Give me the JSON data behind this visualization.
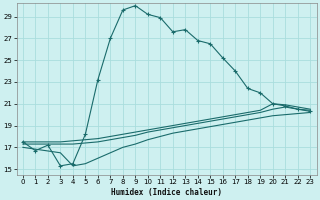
{
  "xlabel": "Humidex (Indice chaleur)",
  "bg_color": "#cef0f0",
  "grid_color": "#aadddd",
  "line_color": "#1a6b6b",
  "xlim": [
    -0.5,
    23.5
  ],
  "ylim": [
    14.5,
    30.2
  ],
  "xticks": [
    0,
    1,
    2,
    3,
    4,
    5,
    6,
    7,
    8,
    9,
    10,
    11,
    12,
    13,
    14,
    15,
    16,
    17,
    18,
    19,
    20,
    21,
    22,
    23
  ],
  "yticks": [
    15,
    17,
    19,
    21,
    23,
    25,
    27,
    29
  ],
  "main_x": [
    0,
    1,
    2,
    3,
    4,
    5,
    6,
    7,
    8,
    9,
    10,
    11,
    12,
    13,
    14,
    15,
    16,
    17,
    18,
    19,
    20,
    21,
    22,
    23
  ],
  "main_y": [
    17.5,
    16.7,
    17.2,
    15.3,
    15.5,
    18.2,
    23.2,
    27.0,
    29.6,
    30.0,
    29.2,
    28.9,
    27.6,
    27.8,
    26.8,
    26.5,
    25.2,
    24.0,
    22.4,
    22.0,
    21.0,
    20.8,
    20.5,
    20.3
  ],
  "line2_x": [
    0,
    1,
    2,
    3,
    4,
    5,
    6,
    7,
    8,
    9,
    10,
    11,
    12,
    13,
    14,
    15,
    16,
    17,
    18,
    19,
    20,
    21,
    22,
    23
  ],
  "line2_y": [
    17.5,
    17.5,
    17.5,
    17.5,
    17.6,
    17.7,
    17.8,
    18.0,
    18.2,
    18.4,
    18.6,
    18.8,
    19.0,
    19.2,
    19.4,
    19.6,
    19.8,
    20.0,
    20.2,
    20.4,
    21.0,
    20.9,
    20.7,
    20.5
  ],
  "line3_x": [
    0,
    1,
    2,
    3,
    4,
    5,
    6,
    7,
    8,
    9,
    10,
    11,
    12,
    13,
    14,
    15,
    16,
    17,
    18,
    19,
    20,
    21,
    22,
    23
  ],
  "line3_y": [
    17.3,
    17.3,
    17.3,
    17.3,
    17.3,
    17.4,
    17.5,
    17.7,
    17.9,
    18.1,
    18.4,
    18.6,
    18.8,
    19.0,
    19.2,
    19.4,
    19.6,
    19.8,
    20.0,
    20.2,
    20.5,
    20.7,
    20.5,
    20.4
  ],
  "line4_x": [
    0,
    3,
    4,
    5,
    6,
    7,
    8,
    9,
    10,
    11,
    12,
    13,
    14,
    15,
    16,
    17,
    18,
    19,
    20,
    21,
    22,
    23
  ],
  "line4_y": [
    17.0,
    16.5,
    15.3,
    15.5,
    16.0,
    16.5,
    17.0,
    17.3,
    17.7,
    18.0,
    18.3,
    18.5,
    18.7,
    18.9,
    19.1,
    19.3,
    19.5,
    19.7,
    19.9,
    20.0,
    20.1,
    20.2
  ]
}
